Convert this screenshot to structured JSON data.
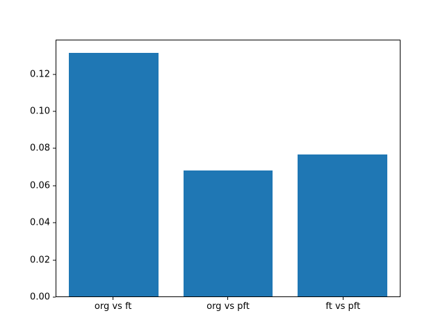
{
  "chart_data": {
    "type": "bar",
    "categories": [
      "org vs ft",
      "org vs pft",
      "ft vs pft"
    ],
    "values": [
      0.132,
      0.068,
      0.077
    ],
    "title": "",
    "xlabel": "",
    "ylabel": "",
    "ylim": [
      0,
      0.1386
    ],
    "yticks": [
      0,
      0.02,
      0.04,
      0.06,
      0.08,
      0.1,
      0.12
    ],
    "grid": false,
    "legend": null,
    "bar_color": "#1f77b4",
    "background_color": "#ffffff",
    "spine_color": "#000000"
  }
}
